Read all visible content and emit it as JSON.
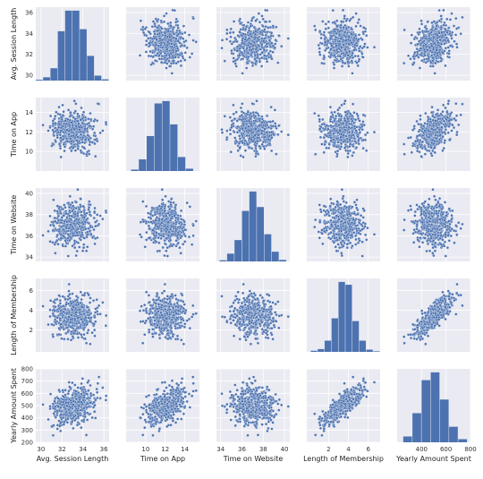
{
  "chart_data": {
    "type": "scatter",
    "variables": [
      "Avg. Session Length",
      "Time on App",
      "Time on Website",
      "Length of Membership",
      "Yearly Amount Spent"
    ],
    "ranges": [
      [
        29.5,
        36.5
      ],
      [
        8.0,
        15.5
      ],
      [
        33.6,
        40.5
      ],
      [
        -0.2,
        7.2
      ],
      [
        200,
        800
      ]
    ],
    "ticks": [
      [
        30,
        32,
        34,
        36
      ],
      [
        10,
        12,
        14
      ],
      [
        34,
        36,
        38,
        40
      ],
      [
        2,
        4,
        6
      ],
      [
        400,
        600,
        800
      ]
    ],
    "y_ticks": [
      [
        30,
        32,
        34,
        36
      ],
      [
        10,
        12,
        14
      ],
      [
        34,
        36,
        38,
        40
      ],
      [
        2,
        4,
        6
      ],
      [
        200,
        300,
        400,
        500,
        600,
        700,
        800
      ]
    ],
    "histograms": [
      {
        "variable": "Avg. Session Length",
        "bins": [
          29.5,
          30.2,
          30.9,
          31.6,
          32.3,
          33.0,
          33.7,
          34.4,
          35.1,
          35.8,
          36.5
        ],
        "counts": [
          2,
          8,
          30,
          120,
          170,
          170,
          125,
          60,
          12,
          3
        ]
      },
      {
        "variable": "Time on App",
        "bins": [
          8.5,
          9.3,
          10.1,
          10.9,
          11.7,
          12.5,
          13.3,
          14.1,
          14.9
        ],
        "counts": [
          3,
          25,
          75,
          145,
          150,
          100,
          30,
          5
        ]
      },
      {
        "variable": "Time on Website",
        "bins": [
          33.9,
          34.6,
          35.3,
          36.0,
          36.7,
          37.4,
          38.1,
          38.8,
          39.5,
          40.2
        ],
        "counts": [
          3,
          20,
          55,
          130,
          180,
          140,
          70,
          25,
          4
        ]
      },
      {
        "variable": "Length of Membership",
        "bins": [
          0.2,
          0.9,
          1.6,
          2.3,
          3.0,
          3.7,
          4.4,
          5.1,
          5.8,
          6.5,
          7.2
        ],
        "counts": [
          4,
          10,
          40,
          120,
          250,
          240,
          110,
          40,
          8,
          2
        ]
      },
      {
        "variable": "Yearly Amount Spent",
        "bins": [
          250,
          325,
          400,
          475,
          550,
          625,
          700,
          775
        ],
        "counts": [
          15,
          75,
          160,
          180,
          110,
          40,
          8
        ]
      }
    ],
    "xlabel": [
      "Avg. Session Length",
      "Time on App",
      "Time on Website",
      "Length of Membership",
      "Yearly Amount Spent"
    ],
    "ylabel": [
      "Avg. Session Length",
      "Time on App",
      "Time on Website",
      "Length of Membership",
      "Yearly Amount Spent"
    ]
  },
  "colors": {
    "panel_bg": "#EAEAF2",
    "grid": "#ffffff",
    "points": "#4C72B0",
    "bars": "#4C72B0"
  }
}
